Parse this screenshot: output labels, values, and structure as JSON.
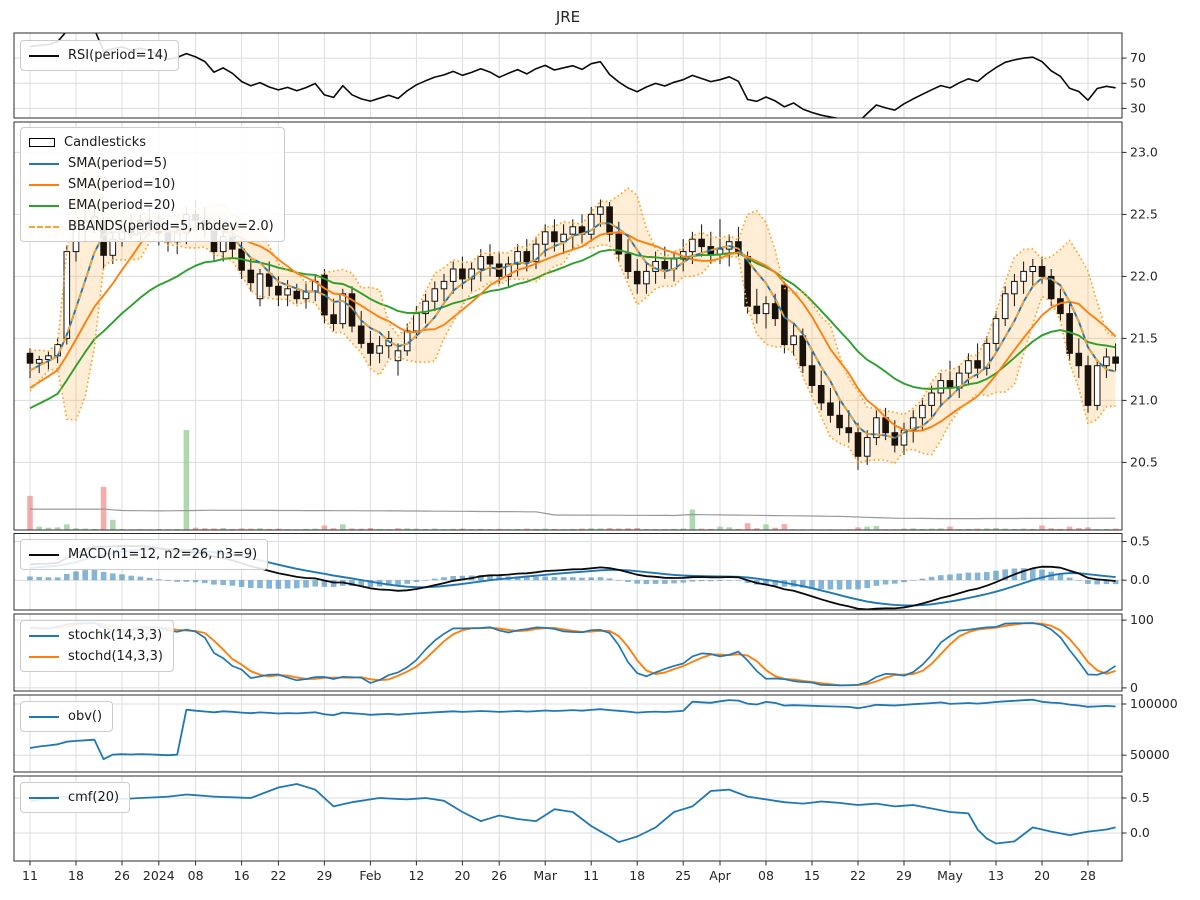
{
  "title": "JRE",
  "legends": {
    "rsi": [
      "RSI(period=14)"
    ],
    "price": [
      "Candlesticks",
      "SMA(period=5)",
      "SMA(period=10)",
      "EMA(period=20)",
      "BBANDS(period=5, nbdev=2.0)"
    ],
    "macd": [
      "MACD(n1=12, n2=26, n3=9)"
    ],
    "stoch": [
      "stochk(14,3,3)",
      "stochd(14,3,3)"
    ],
    "obv": [
      "obv()"
    ],
    "cmf": [
      "cmf(20)"
    ]
  },
  "colors": {
    "sma5": "#1f77b4",
    "sma10": "#ff7f0e",
    "ema20": "#2ca02c",
    "bbands": "#ffa226",
    "bb_fill": "rgba(255,174,66,0.22)",
    "macd": "#0a0a0a",
    "signal": "#1f77b4",
    "hist": "rgba(31,119,180,0.55)",
    "rsi": "#0a0a0a",
    "stochk": "#1f77b4",
    "stochd": "#ff7f0e",
    "obv": "#1f77b4",
    "cmf": "#1f77b4",
    "vol_up": "rgba(130,195,130,0.65)",
    "vol_down": "rgba(240,128,128,0.65)",
    "vol_ma": "#999999",
    "grid": "#dcdcdc",
    "spine": "#2b2b2b",
    "text": "#262626",
    "candle_up_fill": "#ffffff",
    "candle_down_fill": "#1a1208",
    "candle_edge": "#111111"
  },
  "axes": {
    "x_tick_indices": [
      0,
      5,
      10,
      14,
      18,
      23,
      27,
      32,
      37,
      42,
      47,
      51,
      56,
      61,
      66,
      71,
      75,
      80,
      85,
      90,
      95,
      100,
      105,
      110,
      115
    ],
    "x_tick_labels": [
      "11",
      "18",
      "26",
      "2024",
      "08",
      "16",
      "22",
      "29",
      "Feb",
      "12",
      "20",
      "26",
      "Mar",
      "11",
      "18",
      "25",
      "Apr",
      "08",
      "15",
      "22",
      "29",
      "May",
      "13",
      "20",
      "28"
    ],
    "y": {
      "rsi": {
        "ylim": [
          22.4,
          90
        ],
        "ticks": [
          [
            70,
            "70"
          ],
          [
            50,
            "50"
          ],
          [
            30,
            "30"
          ]
        ]
      },
      "price": {
        "ylim": [
          19.955,
          23.245
        ],
        "ticks": [
          [
            23.0,
            "23.0"
          ],
          [
            22.5,
            "22.5"
          ],
          [
            22.0,
            "22.0"
          ],
          [
            21.5,
            "21.5"
          ],
          [
            21.0,
            "21.0"
          ],
          [
            20.5,
            "20.5"
          ]
        ]
      },
      "macd": {
        "ylim": [
          -0.385,
          0.603
        ],
        "ticks": [
          [
            0.5,
            "0.5"
          ],
          [
            0.0,
            "0.0"
          ]
        ]
      },
      "stoch": {
        "ylim": [
          -4.6,
          109
        ],
        "ticks": [
          [
            100,
            "100"
          ],
          [
            0,
            "0"
          ]
        ]
      },
      "obv": {
        "ylim": [
          33600,
          108800
        ],
        "ticks": [
          [
            100000,
            "100000"
          ],
          [
            50000,
            "50000"
          ]
        ]
      },
      "cmf": {
        "ylim": [
          -0.4,
          0.815
        ],
        "ticks": [
          [
            0.5,
            "0.5"
          ],
          [
            0.0,
            "0.0"
          ]
        ]
      }
    }
  },
  "chart_data": {
    "type": "candlestick",
    "title": "JRE",
    "x_period": "daily, 2023-12-11 to 2024-05-31 (index 0..118)",
    "panels": [
      "RSI(14)",
      "price+SMA5+SMA10+EMA20+BBANDS(5,2.0)+volume",
      "MACD(12,26,9)",
      "stoch(14,3,3)",
      "obv",
      "cmf(20)"
    ],
    "indicator_params": {
      "rsi_period": 14,
      "sma_fast": 5,
      "sma_slow": 10,
      "ema_period": 20,
      "bb_period": 5,
      "bb_nbdev": 2.0,
      "macd": [
        12,
        26,
        9
      ],
      "stoch": [
        14,
        3,
        3
      ],
      "cmf_period": 20
    },
    "ohlc": [
      [
        21.38,
        21.42,
        21.18,
        21.3
      ],
      [
        21.3,
        21.36,
        21.22,
        21.33
      ],
      [
        21.33,
        21.4,
        21.25,
        21.36
      ],
      [
        21.36,
        21.5,
        21.3,
        21.45
      ],
      [
        21.5,
        22.25,
        21.45,
        22.2
      ],
      [
        22.2,
        22.45,
        22.12,
        22.38
      ],
      [
        22.38,
        22.52,
        22.28,
        22.45
      ],
      [
        22.45,
        22.55,
        22.35,
        22.48
      ],
      [
        22.45,
        22.48,
        22.05,
        22.17
      ],
      [
        22.17,
        22.35,
        22.1,
        22.3
      ],
      [
        22.3,
        22.46,
        22.24,
        22.4
      ],
      [
        22.4,
        22.5,
        22.3,
        22.35
      ],
      [
        22.35,
        22.5,
        22.28,
        22.45
      ],
      [
        22.45,
        22.55,
        22.33,
        22.42
      ],
      [
        22.42,
        22.5,
        22.25,
        22.35
      ],
      [
        22.35,
        22.44,
        22.2,
        22.28
      ],
      [
        22.28,
        22.42,
        22.18,
        22.35
      ],
      [
        22.35,
        22.56,
        22.26,
        22.5
      ],
      [
        22.5,
        22.62,
        22.38,
        22.45
      ],
      [
        22.45,
        22.56,
        22.32,
        22.38
      ],
      [
        22.38,
        22.46,
        22.12,
        22.2
      ],
      [
        22.2,
        22.38,
        22.12,
        22.32
      ],
      [
        22.32,
        22.42,
        22.15,
        22.22
      ],
      [
        22.22,
        22.3,
        21.98,
        22.05
      ],
      [
        22.05,
        22.16,
        21.88,
        21.95
      ],
      [
        21.82,
        22.06,
        21.76,
        22.02
      ],
      [
        22.02,
        22.12,
        21.84,
        21.92
      ],
      [
        21.92,
        22.0,
        21.76,
        21.85
      ],
      [
        21.85,
        21.97,
        21.76,
        21.9
      ],
      [
        21.88,
        21.94,
        21.78,
        21.82
      ],
      [
        21.82,
        21.96,
        21.74,
        21.88
      ],
      [
        21.88,
        22.02,
        21.8,
        21.96
      ],
      [
        22.01,
        22.06,
        21.62,
        21.69
      ],
      [
        21.69,
        21.82,
        21.56,
        21.62
      ],
      [
        21.62,
        21.9,
        21.58,
        21.86
      ],
      [
        21.86,
        21.92,
        21.55,
        21.6
      ],
      [
        21.6,
        21.72,
        21.42,
        21.46
      ],
      [
        21.46,
        21.56,
        21.28,
        21.38
      ],
      [
        21.38,
        21.52,
        21.3,
        21.44
      ],
      [
        21.44,
        21.56,
        21.34,
        21.5
      ],
      [
        21.32,
        21.46,
        21.2,
        21.4
      ],
      [
        21.4,
        21.62,
        21.36,
        21.56
      ],
      [
        21.56,
        21.76,
        21.5,
        21.7
      ],
      [
        21.7,
        21.86,
        21.62,
        21.8
      ],
      [
        21.8,
        21.96,
        21.72,
        21.9
      ],
      [
        21.9,
        22.02,
        21.8,
        21.96
      ],
      [
        21.96,
        22.12,
        21.86,
        22.06
      ],
      [
        22.06,
        22.16,
        21.9,
        21.98
      ],
      [
        21.98,
        22.12,
        21.88,
        22.06
      ],
      [
        22.06,
        22.22,
        21.96,
        22.16
      ],
      [
        22.16,
        22.26,
        22.0,
        22.1
      ],
      [
        22.1,
        22.2,
        21.94,
        22.0
      ],
      [
        22.0,
        22.16,
        21.92,
        22.1
      ],
      [
        22.1,
        22.26,
        22.0,
        22.2
      ],
      [
        22.2,
        22.3,
        22.04,
        22.12
      ],
      [
        22.12,
        22.32,
        22.06,
        22.26
      ],
      [
        22.26,
        22.42,
        22.16,
        22.36
      ],
      [
        22.36,
        22.46,
        22.2,
        22.28
      ],
      [
        22.28,
        22.42,
        22.18,
        22.34
      ],
      [
        22.34,
        22.46,
        22.22,
        22.4
      ],
      [
        22.4,
        22.5,
        22.26,
        22.34
      ],
      [
        22.34,
        22.56,
        22.28,
        22.5
      ],
      [
        22.5,
        22.62,
        22.4,
        22.56
      ],
      [
        22.56,
        22.6,
        22.28,
        22.34
      ],
      [
        22.34,
        22.44,
        22.12,
        22.18
      ],
      [
        22.18,
        22.3,
        21.98,
        22.04
      ],
      [
        22.04,
        22.14,
        21.86,
        21.94
      ],
      [
        21.94,
        22.1,
        21.86,
        22.04
      ],
      [
        22.04,
        22.2,
        21.94,
        22.12
      ],
      [
        22.12,
        22.24,
        21.98,
        22.06
      ],
      [
        22.06,
        22.2,
        21.96,
        22.14
      ],
      [
        22.14,
        22.3,
        22.04,
        22.2
      ],
      [
        22.2,
        22.36,
        22.1,
        22.3
      ],
      [
        22.3,
        22.42,
        22.16,
        22.24
      ],
      [
        22.24,
        22.36,
        22.1,
        22.18
      ],
      [
        22.18,
        22.46,
        22.1,
        22.22
      ],
      [
        22.22,
        22.34,
        22.08,
        22.28
      ],
      [
        22.28,
        22.4,
        22.16,
        22.2
      ],
      [
        22.16,
        22.2,
        21.7,
        21.76
      ],
      [
        21.76,
        21.9,
        21.62,
        21.7
      ],
      [
        21.7,
        21.84,
        21.58,
        21.78
      ],
      [
        21.78,
        21.86,
        21.6,
        21.66
      ],
      [
        21.93,
        21.96,
        21.38,
        21.45
      ],
      [
        21.45,
        21.62,
        21.36,
        21.52
      ],
      [
        21.52,
        21.58,
        21.22,
        21.28
      ],
      [
        21.28,
        21.4,
        21.06,
        21.12
      ],
      [
        21.12,
        21.24,
        20.92,
        20.98
      ],
      [
        20.98,
        21.1,
        20.82,
        20.88
      ],
      [
        20.88,
        21.0,
        20.72,
        20.78
      ],
      [
        20.78,
        20.92,
        20.66,
        20.74
      ],
      [
        20.74,
        20.82,
        20.44,
        20.55
      ],
      [
        20.55,
        20.76,
        20.48,
        20.7
      ],
      [
        20.7,
        20.92,
        20.64,
        20.86
      ],
      [
        20.86,
        20.94,
        20.68,
        20.74
      ],
      [
        20.74,
        20.84,
        20.58,
        20.64
      ],
      [
        20.64,
        20.82,
        20.56,
        20.76
      ],
      [
        20.76,
        20.92,
        20.66,
        20.86
      ],
      [
        20.86,
        21.02,
        20.76,
        20.96
      ],
      [
        20.96,
        21.12,
        20.86,
        21.06
      ],
      [
        21.06,
        21.22,
        20.96,
        21.16
      ],
      [
        21.16,
        21.32,
        21.02,
        21.1
      ],
      [
        21.1,
        21.28,
        21.02,
        21.22
      ],
      [
        21.22,
        21.38,
        21.12,
        21.32
      ],
      [
        21.32,
        21.46,
        21.18,
        21.26
      ],
      [
        21.26,
        21.52,
        21.2,
        21.46
      ],
      [
        21.46,
        21.72,
        21.4,
        21.66
      ],
      [
        21.66,
        21.92,
        21.6,
        21.86
      ],
      [
        21.86,
        22.02,
        21.76,
        21.96
      ],
      [
        21.96,
        22.12,
        21.86,
        22.04
      ],
      [
        22.04,
        22.14,
        21.92,
        22.08
      ],
      [
        22.08,
        22.16,
        21.94,
        22.0
      ],
      [
        22.0,
        22.06,
        21.76,
        21.82
      ],
      [
        21.82,
        21.9,
        21.64,
        21.7
      ],
      [
        21.7,
        21.78,
        21.32,
        21.38
      ],
      [
        21.38,
        21.5,
        21.18,
        21.28
      ],
      [
        21.28,
        21.36,
        20.9,
        20.96
      ],
      [
        20.96,
        21.32,
        20.92,
        21.28
      ],
      [
        21.28,
        21.42,
        21.18,
        21.35
      ],
      [
        21.35,
        21.46,
        21.24,
        21.3
      ]
    ],
    "volume": [
      15000,
      1500,
      1000,
      1200,
      2500,
      800,
      600,
      500,
      19000,
      4500,
      400,
      300,
      400,
      300,
      400,
      350,
      400,
      44000,
      1000,
      800,
      700,
      900,
      500,
      700,
      600,
      800,
      500,
      600,
      400,
      300,
      500,
      600,
      2000,
      800,
      2500,
      700,
      600,
      900,
      500,
      400,
      800,
      700,
      600,
      500,
      600,
      400,
      500,
      600,
      400,
      500,
      400,
      500,
      400,
      500,
      600,
      500,
      600,
      500,
      400,
      500,
      600,
      800,
      700,
      900,
      700,
      800,
      900,
      500,
      400,
      400,
      500,
      600,
      9000,
      600,
      500,
      1500,
      1200,
      500,
      3000,
      800,
      2500,
      1000,
      2600,
      400,
      300,
      300,
      250,
      300,
      250,
      300,
      1200,
      1500,
      1800,
      400,
      350,
      600,
      700,
      500,
      600,
      700,
      1500,
      400,
      500,
      600,
      700,
      900,
      600,
      500,
      600,
      500,
      2000,
      800,
      500,
      1500,
      900,
      1200,
      400,
      500,
      600
    ],
    "obv_seed": 72000,
    "warmup_closes": [
      20.45,
      20.4,
      20.42,
      20.38,
      20.44,
      20.4,
      20.46,
      20.42,
      20.48,
      20.44,
      20.5,
      20.46,
      20.52,
      20.55,
      20.6,
      20.58,
      20.65,
      20.7,
      20.68,
      20.75,
      20.8,
      20.85,
      20.9,
      20.95,
      21.02,
      21.08,
      21.12,
      21.18,
      21.25,
      21.35
    ],
    "volume_ma_anchors": [
      [
        0,
        9200
      ],
      [
        8,
        9200
      ],
      [
        10,
        8600
      ],
      [
        14,
        8400
      ],
      [
        20,
        8700
      ],
      [
        40,
        8400
      ],
      [
        55,
        8000
      ],
      [
        57,
        6600
      ],
      [
        70,
        6400
      ],
      [
        72,
        6800
      ],
      [
        88,
        6000
      ],
      [
        94,
        5200
      ],
      [
        100,
        5000
      ],
      [
        118,
        5200
      ]
    ],
    "cmf_anchors": [
      [
        0,
        0.45
      ],
      [
        3,
        0.52
      ],
      [
        6,
        0.5
      ],
      [
        9,
        0.48
      ],
      [
        12,
        0.5
      ],
      [
        15,
        0.52
      ],
      [
        17,
        0.55
      ],
      [
        20,
        0.52
      ],
      [
        24,
        0.5
      ],
      [
        27,
        0.65
      ],
      [
        29,
        0.7
      ],
      [
        31,
        0.62
      ],
      [
        33,
        0.38
      ],
      [
        35,
        0.44
      ],
      [
        38,
        0.5
      ],
      [
        41,
        0.48
      ],
      [
        43,
        0.5
      ],
      [
        45,
        0.46
      ],
      [
        47,
        0.3
      ],
      [
        49,
        0.17
      ],
      [
        51,
        0.25
      ],
      [
        53,
        0.2
      ],
      [
        55,
        0.17
      ],
      [
        57,
        0.34
      ],
      [
        59,
        0.3
      ],
      [
        61,
        0.1
      ],
      [
        63,
        -0.05
      ],
      [
        64,
        -0.13
      ],
      [
        66,
        -0.05
      ],
      [
        68,
        0.08
      ],
      [
        70,
        0.3
      ],
      [
        72,
        0.38
      ],
      [
        74,
        0.6
      ],
      [
        76,
        0.62
      ],
      [
        78,
        0.52
      ],
      [
        80,
        0.48
      ],
      [
        82,
        0.44
      ],
      [
        84,
        0.42
      ],
      [
        86,
        0.45
      ],
      [
        88,
        0.43
      ],
      [
        90,
        0.4
      ],
      [
        92,
        0.42
      ],
      [
        94,
        0.38
      ],
      [
        96,
        0.4
      ],
      [
        98,
        0.35
      ],
      [
        100,
        0.3
      ],
      [
        102,
        0.28
      ],
      [
        103,
        0.05
      ],
      [
        104,
        -0.08
      ],
      [
        105,
        -0.15
      ],
      [
        107,
        -0.12
      ],
      [
        109,
        0.08
      ],
      [
        111,
        0.02
      ],
      [
        113,
        -0.03
      ],
      [
        115,
        0.02
      ],
      [
        117,
        0.05
      ],
      [
        118,
        0.08
      ]
    ]
  }
}
